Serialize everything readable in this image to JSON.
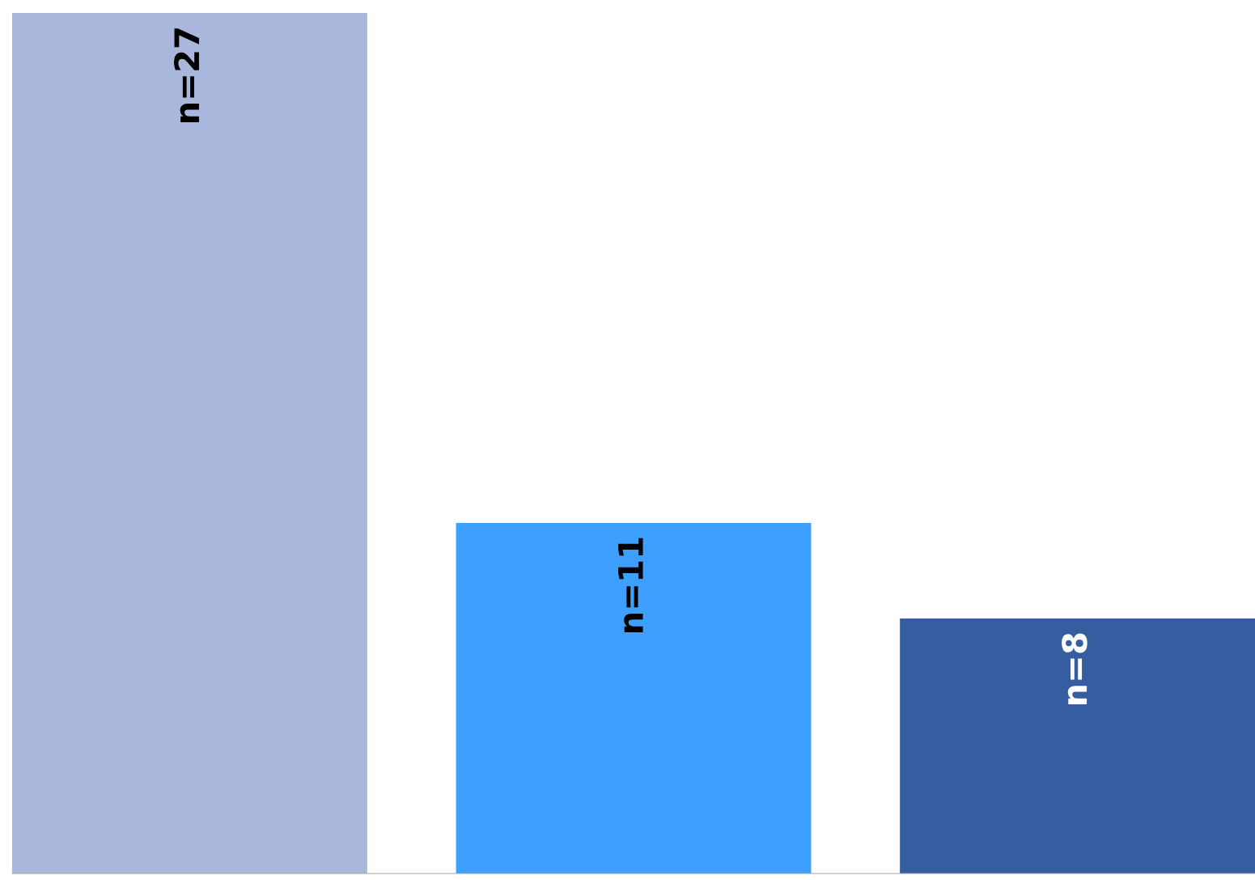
{
  "chart_data": {
    "type": "bar",
    "categories": [
      null,
      null,
      null
    ],
    "values": [
      27,
      11,
      8
    ],
    "colors": [
      "#a8b7db",
      "#3d9ffe",
      "#365da0"
    ],
    "value_labels": [
      "n=27",
      "n=11",
      "n=8"
    ],
    "ylim": [
      0,
      27
    ],
    "tick_labels": false,
    "grid": false,
    "legend": false
  }
}
